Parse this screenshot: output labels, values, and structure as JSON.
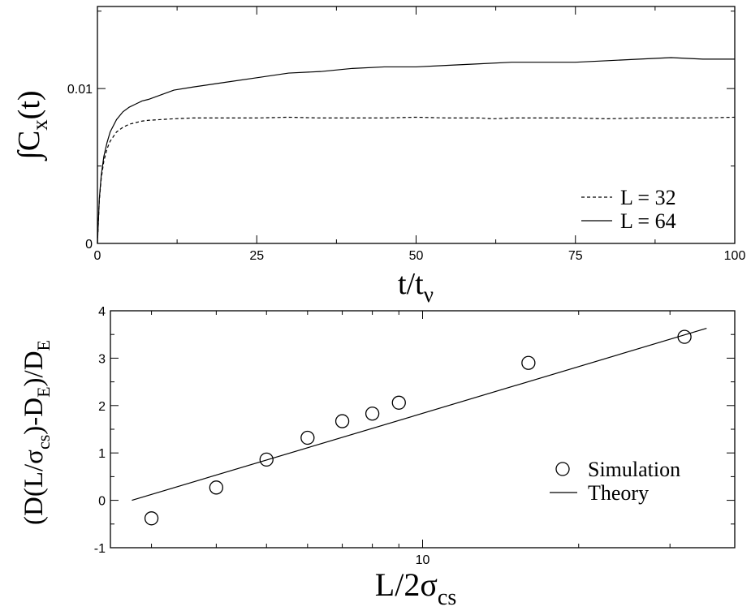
{
  "chart_data": [
    {
      "type": "line",
      "xlabel": {
        "main": "t/t",
        "sub": "ν"
      },
      "ylabel": {
        "main": "∫C",
        "sub": "x",
        "tail": "(t)"
      },
      "xlim": [
        0,
        100
      ],
      "ylim": [
        0,
        0.0153
      ],
      "xticks": [
        0,
        25,
        50,
        75,
        100
      ],
      "xtick_labels": [
        "0",
        "25",
        "50",
        "75",
        "100"
      ],
      "yticks": [
        0,
        0.01
      ],
      "ytick_labels": [
        "0",
        "0.01"
      ],
      "legend": "bottom-right",
      "series": [
        {
          "name": "L = 32",
          "style": "dashed",
          "x": [
            0,
            0.3,
            0.6,
            1,
            1.5,
            2,
            3,
            4,
            5,
            6,
            7,
            8,
            10,
            12,
            15,
            20,
            25,
            30,
            35,
            40,
            45,
            50,
            55,
            60,
            62,
            65,
            70,
            75,
            80,
            85,
            90,
            95,
            100
          ],
          "y": [
            0,
            0.0028,
            0.0042,
            0.0053,
            0.0061,
            0.0066,
            0.0072,
            0.0075,
            0.0077,
            0.0078,
            0.0079,
            0.00795,
            0.008,
            0.00805,
            0.0081,
            0.0081,
            0.0081,
            0.00815,
            0.0081,
            0.0081,
            0.0081,
            0.00815,
            0.0081,
            0.0081,
            0.00805,
            0.0081,
            0.0081,
            0.0081,
            0.00805,
            0.0081,
            0.0081,
            0.0081,
            0.00815
          ]
        },
        {
          "name": "L = 64",
          "style": "solid",
          "x": [
            0,
            0.3,
            0.6,
            1,
            1.5,
            2,
            3,
            4,
            5,
            6,
            7,
            8,
            10,
            12,
            15,
            20,
            25,
            30,
            35,
            40,
            45,
            50,
            55,
            60,
            65,
            70,
            75,
            80,
            85,
            90,
            95,
            100
          ],
          "y": [
            0,
            0.0029,
            0.0044,
            0.0056,
            0.0065,
            0.0072,
            0.008,
            0.0085,
            0.0088,
            0.009,
            0.0092,
            0.0093,
            0.0096,
            0.0099,
            0.0101,
            0.0104,
            0.0107,
            0.011,
            0.0111,
            0.0113,
            0.0114,
            0.0114,
            0.0115,
            0.0116,
            0.0117,
            0.0117,
            0.0117,
            0.0118,
            0.0119,
            0.012,
            0.0119,
            0.0119
          ]
        }
      ]
    },
    {
      "type": "scatter",
      "xlabel": {
        "main": "L/2σ",
        "sub": "cs"
      },
      "ylabel": {
        "pre": "(D(L/σ",
        "sub1": "cs",
        "mid": ")-D",
        "sub2": "E",
        "post": ")/D",
        "sub3": "E"
      },
      "xscale": "log",
      "xlim": [
        2.5,
        40
      ],
      "ylim": [
        -1,
        4
      ],
      "xticks_major": [
        10
      ],
      "xtick_labels": [
        "10"
      ],
      "xticks_minor": [
        3,
        4,
        5,
        6,
        7,
        8,
        9,
        20,
        30
      ],
      "yticks": [
        -1,
        0,
        1,
        2,
        3,
        4
      ],
      "ytick_labels": [
        "-1",
        "0",
        "1",
        "2",
        "3",
        "4"
      ],
      "legend": "center-right",
      "series": [
        {
          "name": "Simulation",
          "style": "open-circle",
          "x": [
            3,
            4,
            5,
            6,
            7,
            8,
            9,
            16,
            32
          ],
          "y": [
            -0.38,
            0.27,
            0.86,
            1.32,
            1.67,
            1.83,
            2.06,
            2.9,
            3.45
          ]
        },
        {
          "name": "Theory",
          "style": "solid",
          "x": [
            2.75,
            35.3
          ],
          "y": [
            0.0,
            3.63
          ]
        }
      ]
    }
  ]
}
